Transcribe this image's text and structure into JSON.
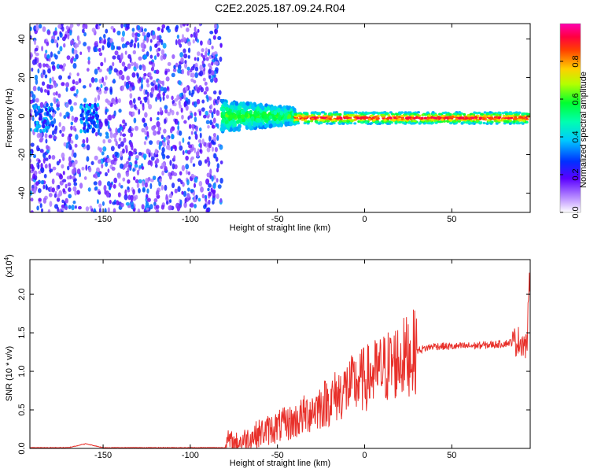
{
  "title": "C2E2.2025.187.09.24.R04",
  "chart_data": [
    {
      "type": "heatmap",
      "xlabel": "Height of straight line (km)",
      "ylabel": "Frequency (Hz)",
      "xlim": [
        -192,
        95
      ],
      "ylim": [
        -50,
        48
      ],
      "xticks": [
        -150,
        -100,
        -50,
        0,
        50
      ],
      "yticks": [
        -40,
        -20,
        0,
        20,
        40
      ],
      "colorbar": {
        "label": "Normalized spectral amplitude",
        "range": [
          0,
          1
        ],
        "ticks": [
          "0.0",
          "0.2",
          "0.4",
          "0.6",
          "0.8"
        ]
      },
      "regions": [
        {
          "x_range": [
            -192,
            -82
          ],
          "description": "broadband noise speckle, low amplitude (0.1-0.35)"
        },
        {
          "x_range": [
            -82,
            -40
          ],
          "center_freq_hz": 0,
          "spread_hz": 8,
          "amplitude": 0.45
        },
        {
          "x_range": [
            -40,
            95
          ],
          "center_freq_hz": -1,
          "spread_hz": 3,
          "amplitude": 0.9
        }
      ]
    },
    {
      "type": "line",
      "xlabel": "Height of straight line (km)",
      "ylabel": "SNR (10 * v/v)",
      "yscale_label": "(x10",
      "yscale_exp": "4",
      "xlim": [
        -192,
        95
      ],
      "ylim": [
        0,
        2.45
      ],
      "xticks": [
        -150,
        -100,
        -50,
        0,
        50
      ],
      "yticks": [
        "0.0",
        "0.5",
        "1.0",
        "1.5",
        "2.0"
      ],
      "series": [
        {
          "color": "#e8302a",
          "x": [
            -192,
            -170,
            -160,
            -150,
            -100,
            -80,
            -78,
            -75,
            -70,
            -60,
            -50,
            -40,
            -30,
            -20,
            -10,
            0,
            10,
            20,
            30,
            40,
            50,
            60,
            70,
            80,
            85,
            90,
            93,
            95
          ],
          "y": [
            0.01,
            0.01,
            0.06,
            0.01,
            0.01,
            0.01,
            0.1,
            0.06,
            0.1,
            0.2,
            0.28,
            0.35,
            0.5,
            0.62,
            0.78,
            0.9,
            1.02,
            1.15,
            1.27,
            1.33,
            1.32,
            1.33,
            1.34,
            1.36,
            1.38,
            1.4,
            1.3,
            2.35
          ]
        }
      ]
    }
  ]
}
